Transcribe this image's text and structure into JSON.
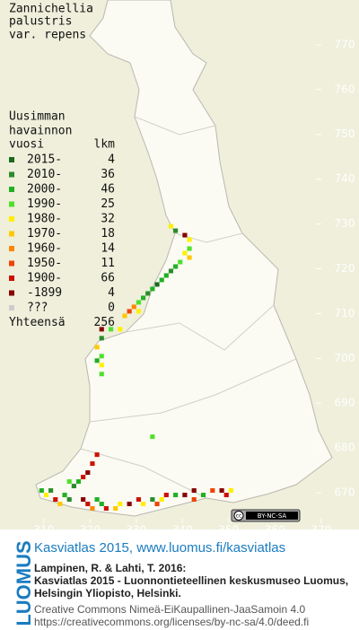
{
  "title": [
    "Zannichellia",
    "palustris",
    "var. repens"
  ],
  "legend": {
    "header": [
      "Uusimman",
      "havainnon",
      "vuosi"
    ],
    "count_header": "lkm",
    "rows": [
      {
        "label": "2015-",
        "count": 4,
        "color": "#1b6a1b"
      },
      {
        "label": "2010-",
        "count": 36,
        "color": "#2a8c2a"
      },
      {
        "label": "2000-",
        "count": 46,
        "color": "#22b022"
      },
      {
        "label": "1990-",
        "count": 25,
        "color": "#4ee02a"
      },
      {
        "label": "1980-",
        "count": 32,
        "color": "#fff000"
      },
      {
        "label": "1970-",
        "count": 18,
        "color": "#ffc800"
      },
      {
        "label": "1960-",
        "count": 14,
        "color": "#ff8800"
      },
      {
        "label": "1950-",
        "count": 11,
        "color": "#ee4400"
      },
      {
        "label": "1900-",
        "count": 66,
        "color": "#cc1100"
      },
      {
        "label": "-1899",
        "count": 4,
        "color": "#880000"
      },
      {
        "label": "???",
        "count": 0,
        "color": "#cccccc"
      }
    ],
    "total_label": "Yhteensä",
    "total": 256
  },
  "map": {
    "xlim": [
      300.5,
      378.2
    ],
    "ylim": [
      663.8,
      780
    ],
    "xticks": [
      310,
      320,
      330,
      340,
      350,
      360,
      370
    ],
    "yticks": [
      770,
      760,
      750,
      740,
      730,
      720,
      710,
      700,
      690,
      680,
      670
    ],
    "records": [
      [
        337,
        729,
        4
      ],
      [
        338,
        728,
        1
      ],
      [
        340,
        727,
        9
      ],
      [
        341,
        726,
        4
      ],
      [
        341,
        724,
        3
      ],
      [
        340,
        723,
        4
      ],
      [
        341,
        722,
        5
      ],
      [
        339,
        721,
        3
      ],
      [
        338,
        720,
        2
      ],
      [
        337,
        719,
        1
      ],
      [
        336,
        718,
        2
      ],
      [
        335,
        717,
        2
      ],
      [
        334,
        716,
        0
      ],
      [
        333,
        715,
        2
      ],
      [
        332,
        714,
        1
      ],
      [
        331,
        713,
        2
      ],
      [
        330,
        712,
        3
      ],
      [
        329,
        711,
        6
      ],
      [
        328,
        710,
        7
      ],
      [
        327,
        709,
        5
      ],
      [
        330,
        710,
        4
      ],
      [
        322,
        706,
        9
      ],
      [
        324,
        706,
        3
      ],
      [
        326,
        706,
        4
      ],
      [
        322,
        704,
        1
      ],
      [
        321,
        702,
        5
      ],
      [
        322,
        700,
        3
      ],
      [
        321,
        699,
        2
      ],
      [
        322,
        698,
        4
      ],
      [
        322,
        696,
        3
      ],
      [
        321,
        678,
        8
      ],
      [
        320,
        676,
        8
      ],
      [
        319,
        674,
        9
      ],
      [
        318,
        673,
        8
      ],
      [
        315,
        672,
        3
      ],
      [
        316,
        671,
        1
      ],
      [
        317,
        672,
        2
      ],
      [
        309,
        670,
        2
      ],
      [
        310,
        669,
        4
      ],
      [
        311,
        670,
        1
      ],
      [
        312,
        668,
        8
      ],
      [
        313,
        667,
        5
      ],
      [
        314,
        669,
        2
      ],
      [
        315,
        668,
        1
      ],
      [
        318,
        668,
        9
      ],
      [
        319,
        667,
        8
      ],
      [
        320,
        666,
        6
      ],
      [
        321,
        668,
        2
      ],
      [
        322,
        667,
        2
      ],
      [
        323,
        666,
        8
      ],
      [
        325,
        666,
        5
      ],
      [
        326,
        667,
        4
      ],
      [
        328,
        667,
        9
      ],
      [
        330,
        668,
        8
      ],
      [
        331,
        667,
        4
      ],
      [
        333,
        668,
        1
      ],
      [
        334,
        667,
        7
      ],
      [
        335,
        668,
        4
      ],
      [
        338,
        669,
        2
      ],
      [
        340,
        669,
        9
      ],
      [
        342,
        670,
        9
      ],
      [
        344,
        669,
        2
      ],
      [
        346,
        670,
        7
      ],
      [
        348,
        670,
        9
      ],
      [
        349,
        669,
        8
      ],
      [
        350,
        670,
        4
      ],
      [
        333,
        682,
        3
      ],
      [
        336,
        669,
        8
      ],
      [
        342,
        668,
        7
      ]
    ]
  },
  "badge": {
    "icon": "cc",
    "label": "BY-NC-SA"
  },
  "footer": {
    "logo": "LUOMUS",
    "heading": "Kasviatlas 2015, www.luomus.fi/kasviatlas",
    "citation": [
      "Lampinen, R. & Lahti, T. 2016:",
      "Kasviatlas 2015 - Luonnontieteellinen keskusmuseo Luomus,",
      "Helsingin Yliopisto, Helsinki."
    ],
    "license": [
      "Creative Commons Nimeä-EiKaupallinen-JaaSamoin 4.0",
      "https://creativecommons.org/licenses/by-nc-sa/4.0/deed.fi"
    ]
  }
}
